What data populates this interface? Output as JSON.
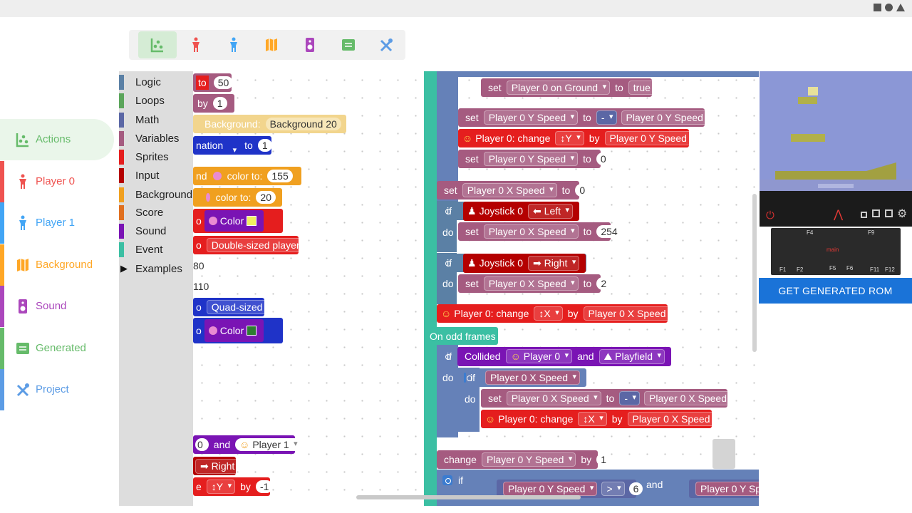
{
  "colors": {
    "logic": "#5b80a5",
    "loops": "#5ba55b",
    "math": "#5b67a5",
    "variables": "#a55b80",
    "sprites": "#e51e1e",
    "input": "#b40000",
    "background": "#f0a020",
    "score": "#e07020",
    "sound": "#7a14b4",
    "event": "#3bbfa3",
    "player": "#c2215a",
    "procedure": "#6581b8"
  },
  "nav": {
    "items": [
      {
        "label": "Actions",
        "color": "#66bb6a",
        "icon": "chart-icon"
      },
      {
        "label": "Player 0",
        "color": "#ef5350",
        "icon": "person-icon"
      },
      {
        "label": "Player 1",
        "color": "#42a5f5",
        "icon": "person-icon"
      },
      {
        "label": "Background",
        "color": "#ffa726",
        "icon": "map-icon"
      },
      {
        "label": "Sound",
        "color": "#ab47bc",
        "icon": "speaker-icon"
      },
      {
        "label": "Generated",
        "color": "#66bb6a",
        "icon": "list-icon"
      },
      {
        "label": "Project",
        "color": "#5c9ce5",
        "icon": "tools-icon"
      }
    ]
  },
  "categories": [
    {
      "label": "Logic",
      "color": "#5b80a5"
    },
    {
      "label": "Loops",
      "color": "#5ba55b"
    },
    {
      "label": "Math",
      "color": "#5b67a5"
    },
    {
      "label": "Variables",
      "color": "#a55b80"
    },
    {
      "label": "Sprites",
      "color": "#e51e1e"
    },
    {
      "label": "Input",
      "color": "#b40000"
    },
    {
      "label": "Background",
      "color": "#f0a020"
    },
    {
      "label": "Score",
      "color": "#e07020"
    },
    {
      "label": "Sound",
      "color": "#7a14b4"
    },
    {
      "label": "Event",
      "color": "#3bbfa3"
    }
  ],
  "examples_label": "Examples",
  "flyout_blocks": {
    "to": "to",
    "by": "by",
    "n50": "50",
    "n1": "1",
    "n1b": "1",
    "bg_kw": "Background:",
    "bg_val": "Background 20",
    "anim": "nation",
    "nd": "nd",
    "color_to": "color to:",
    "n155": "155",
    "n20": "20",
    "color": "Color",
    "double": "Double-sized player.",
    "n80": "80",
    "n110": "110",
    "quad": "Quad-sized",
    "and": "and",
    "player1": "Player 1",
    "right": "Right",
    "y": "↕Y",
    "neg1": "-1",
    "o": "o",
    "e": "e",
    "zero": "0"
  },
  "script": {
    "do": "do",
    "set": "set",
    "to": "to",
    "if": "if",
    "by": "by",
    "change": "change",
    "and": "and",
    "on_ground": "Player 0 on Ground",
    "true": "true",
    "y_speed": "Player 0 Y Speed",
    "x_speed": "Player 0 X Speed",
    "minus": "-",
    "p0_change": "Player 0: change",
    "ydir": "↕Y",
    "xdir": "↕X",
    "zero": "0",
    "joystick": "Joystick 0",
    "left": "Left",
    "right": "Right",
    "n254": "254",
    "n2": "2",
    "on_odd": "On odd frames",
    "collided": "Collided",
    "player0": "Player 0",
    "playfield": "Playfield",
    "n1": "1",
    "gt": ">",
    "n6": "6",
    "y_speed_trunc": "Player 0 Y Spee"
  },
  "rom_button": "GET GENERATED ROM",
  "console": {
    "f4": "F4",
    "f9": "F9",
    "f1": "F1",
    "f2": "F2",
    "f5": "F5",
    "f6": "F6",
    "f11": "F11",
    "f12": "F12",
    "screen": "main"
  }
}
